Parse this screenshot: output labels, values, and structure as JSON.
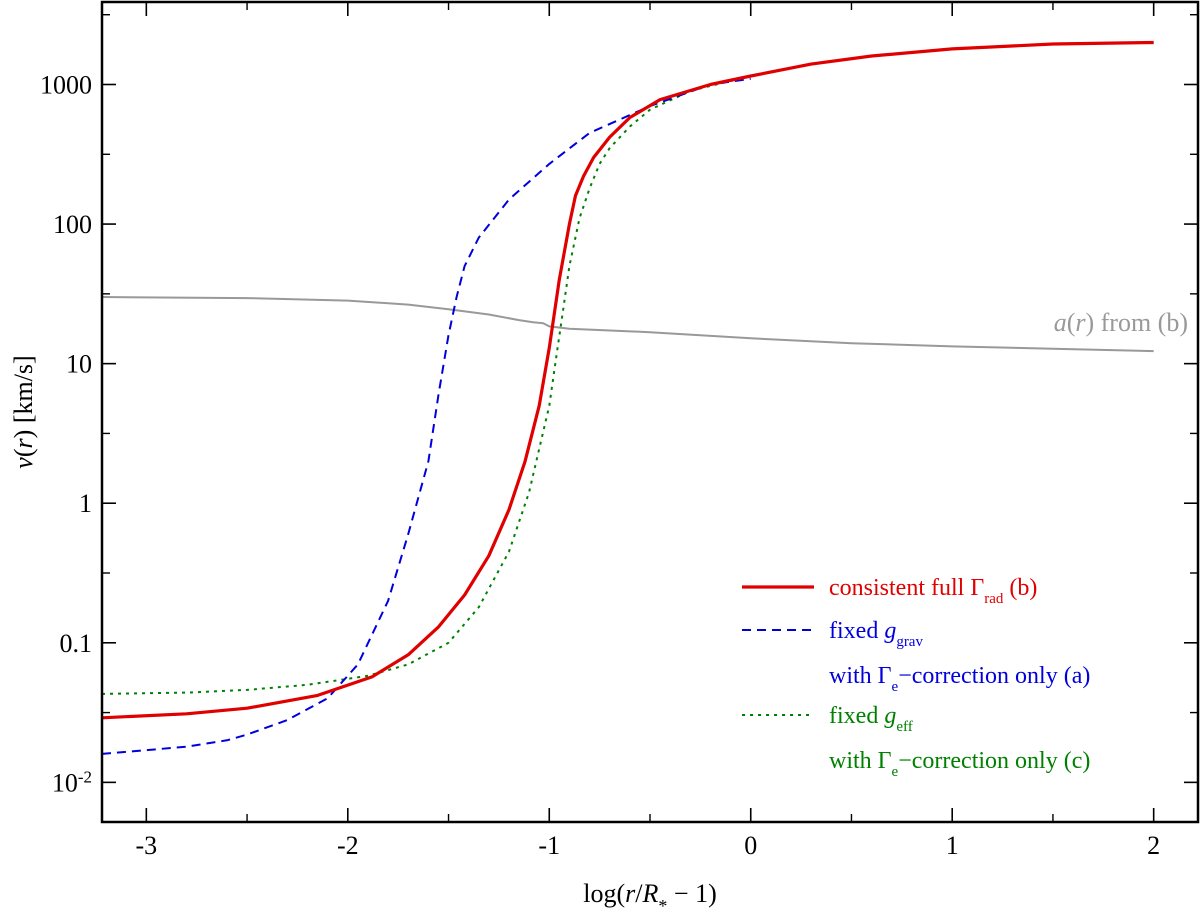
{
  "chart_data": {
    "type": "line",
    "xlabel": "log(r/R* − 1)",
    "ylabel": "v(r) [km/s]",
    "xlim": [
      -3.22,
      2.22
    ],
    "ylim": [
      0.0052,
      3900
    ],
    "yscale": "log",
    "x_ticks": [
      {
        "value": -3,
        "label": "-3"
      },
      {
        "value": -2,
        "label": "-2"
      },
      {
        "value": -1,
        "label": "-1"
      },
      {
        "value": 0,
        "label": "0"
      },
      {
        "value": 1,
        "label": "1"
      },
      {
        "value": 2,
        "label": "2"
      }
    ],
    "y_ticks": [
      {
        "value": 0.01,
        "label_base": "10",
        "label_exp": "-2"
      },
      {
        "value": 0.1,
        "label_base": "0.1",
        "label_exp": ""
      },
      {
        "value": 1,
        "label_base": "1",
        "label_exp": ""
      },
      {
        "value": 10,
        "label_base": "10",
        "label_exp": ""
      },
      {
        "value": 100,
        "label_base": "100",
        "label_exp": ""
      },
      {
        "value": 1000,
        "label_base": "1000",
        "label_exp": ""
      }
    ],
    "grid": false,
    "legend_position": "bottom-right",
    "series": [
      {
        "id": "b",
        "color": "#e00000",
        "style": "solid",
        "x": [
          -3.22,
          -2.8,
          -2.5,
          -2.15,
          -1.88,
          -1.7,
          -1.55,
          -1.42,
          -1.3,
          -1.2,
          -1.12,
          -1.05,
          -1.0,
          -0.95,
          -0.9,
          -0.87,
          -0.83,
          -0.78,
          -0.7,
          -0.6,
          -0.45,
          -0.2,
          0.0,
          0.3,
          0.6,
          1.0,
          1.5,
          2.0
        ],
        "y": [
          0.029,
          0.031,
          0.034,
          0.042,
          0.057,
          0.082,
          0.13,
          0.22,
          0.42,
          0.9,
          2.0,
          5.0,
          13,
          40,
          100,
          160,
          220,
          300,
          420,
          580,
          780,
          1000,
          1150,
          1400,
          1600,
          1800,
          1950,
          2000
        ]
      },
      {
        "id": "a",
        "color": "#0000dd",
        "style": "dashed",
        "x": [
          -3.22,
          -2.8,
          -2.6,
          -2.5,
          -2.3,
          -2.1,
          -1.95,
          -1.8,
          -1.7,
          -1.6,
          -1.55,
          -1.5,
          -1.46,
          -1.42,
          -1.35,
          -1.2,
          -1.0,
          -0.8,
          -0.5,
          -0.2,
          0.0
        ],
        "y": [
          0.016,
          0.018,
          0.02,
          0.022,
          0.028,
          0.04,
          0.07,
          0.2,
          0.6,
          2.0,
          6.0,
          16,
          30,
          50,
          80,
          150,
          270,
          450,
          700,
          1000,
          1100
        ]
      },
      {
        "id": "c",
        "color": "#008000",
        "style": "dotted",
        "x": [
          -3.22,
          -2.8,
          -2.5,
          -2.2,
          -1.9,
          -1.7,
          -1.5,
          -1.35,
          -1.2,
          -1.1,
          -1.0,
          -0.97,
          -0.93,
          -0.9,
          -0.85,
          -0.8,
          -0.75,
          -0.7,
          -0.6,
          -0.5,
          -0.3,
          0.0
        ],
        "y": [
          0.043,
          0.044,
          0.046,
          0.05,
          0.058,
          0.07,
          0.1,
          0.18,
          0.45,
          1.2,
          5.0,
          10,
          25,
          50,
          110,
          180,
          270,
          350,
          500,
          660,
          900,
          1150
        ]
      },
      {
        "id": "a_b",
        "color": "#999999",
        "style": "solid",
        "x": [
          -3.22,
          -2.5,
          -2.0,
          -1.7,
          -1.5,
          -1.3,
          -1.15,
          -1.08,
          -1.03,
          -1.0,
          -0.9,
          -0.5,
          0.0,
          0.5,
          1.0,
          1.5,
          2.0
        ],
        "y": [
          30,
          29.5,
          28.3,
          26.5,
          24.5,
          22.5,
          20.5,
          19.8,
          19.5,
          18.5,
          17.8,
          16.8,
          15.2,
          14.0,
          13.3,
          12.8,
          12.3
        ]
      }
    ],
    "annotations": [
      {
        "text_italic": "a",
        "text_rest1": "(",
        "text_italic2": "r",
        "text_rest2": ") from (b)",
        "color": "#999999"
      }
    ],
    "legend": [
      {
        "series": "b",
        "line1_pre": "consistent full Γ",
        "line1_sub": "rad",
        "line1_post": " (b)",
        "line2_pre": "",
        "line2_sub": "",
        "line2_post": ""
      },
      {
        "series": "a",
        "line1_pre": "fixed ",
        "line1_italic": "g",
        "line1_sub": "grav",
        "line1_post": "",
        "line2_pre": "with Γ",
        "line2_sub": "e",
        "line2_post": "−correction only (a)"
      },
      {
        "series": "c",
        "line1_pre": "fixed ",
        "line1_italic": "g",
        "line1_sub": "eff",
        "line1_post": "",
        "line2_pre": "with Γ",
        "line2_sub": "e",
        "line2_post": "−correction only (c)"
      }
    ]
  }
}
